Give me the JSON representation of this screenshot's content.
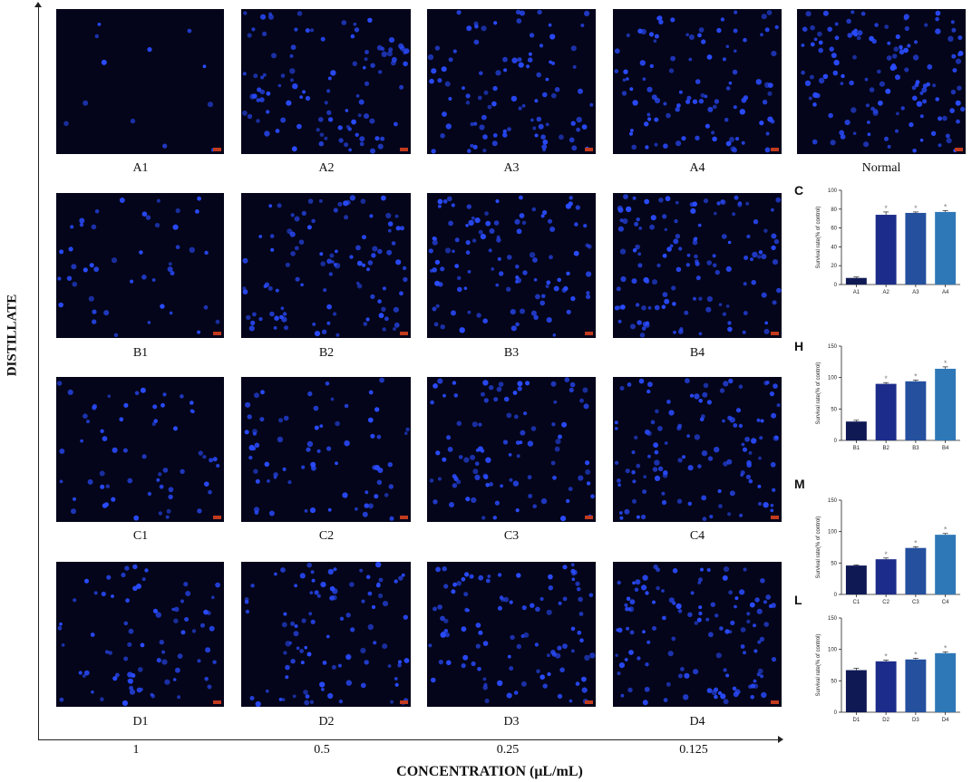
{
  "axes": {
    "y_title": "DISTILLATE",
    "x_title": "CONCENTRATION (μL/mL)",
    "concentrations": [
      "1",
      "0.5",
      "0.25",
      "0.125"
    ]
  },
  "images": [
    {
      "label": "A1",
      "density": 0.06
    },
    {
      "label": "A2",
      "density": 0.75
    },
    {
      "label": "A3",
      "density": 0.72
    },
    {
      "label": "A4",
      "density": 0.75
    },
    {
      "label": "Normal",
      "density": 1.0
    },
    {
      "label": "B1",
      "density": 0.32
    },
    {
      "label": "B2",
      "density": 0.75
    },
    {
      "label": "B3",
      "density": 0.8
    },
    {
      "label": "B4",
      "density": 0.95
    },
    {
      "label": "C1",
      "density": 0.42
    },
    {
      "label": "C2",
      "density": 0.5
    },
    {
      "label": "C3",
      "density": 0.7
    },
    {
      "label": "C4",
      "density": 0.85
    },
    {
      "label": "D1",
      "density": 0.55
    },
    {
      "label": "D2",
      "density": 0.7
    },
    {
      "label": "D3",
      "density": 0.75
    },
    {
      "label": "D4",
      "density": 0.88
    }
  ],
  "colors": {
    "bar_1": "#0f1a55",
    "bar_2": "#1c2c8a",
    "bar_3": "#24509e",
    "bar_4": "#2e78b8",
    "star": "#888888",
    "cell": "#2a4cff"
  },
  "chart_data": [
    {
      "type": "bar",
      "panel": "C",
      "title": "",
      "ylabel": "Survival rate(% of control)",
      "categories": [
        "A1",
        "A2",
        "A3",
        "A4"
      ],
      "values": [
        7,
        74,
        76,
        77
      ],
      "errors": [
        1,
        3,
        1,
        1.5
      ],
      "significant": [
        false,
        true,
        true,
        true
      ],
      "ylim": [
        0,
        100
      ],
      "yticks": [
        0,
        20,
        40,
        60,
        80,
        100
      ]
    },
    {
      "type": "bar",
      "panel": "H",
      "title": "",
      "ylabel": "Survival rate(% of control)",
      "categories": [
        "B1",
        "B2",
        "B3",
        "B4"
      ],
      "values": [
        30,
        90,
        94,
        114
      ],
      "errors": [
        2,
        2,
        2,
        3
      ],
      "significant": [
        false,
        true,
        true,
        true
      ],
      "ylim": [
        0,
        150
      ],
      "yticks": [
        0,
        50,
        100,
        150
      ]
    },
    {
      "type": "bar",
      "panel": "M",
      "title": "",
      "ylabel": "Survival rate(% of control)",
      "categories": [
        "C1",
        "C2",
        "C3",
        "C4"
      ],
      "values": [
        46,
        56,
        74,
        95
      ],
      "errors": [
        1,
        2,
        2,
        2
      ],
      "significant": [
        false,
        true,
        true,
        true
      ],
      "ylim": [
        0,
        150
      ],
      "yticks": [
        0,
        50,
        100,
        150
      ]
    },
    {
      "type": "bar",
      "panel": "L",
      "title": "",
      "ylabel": "Survival rate(% of control)",
      "categories": [
        "D1",
        "D2",
        "D3",
        "D4"
      ],
      "values": [
        67,
        81,
        84,
        94
      ],
      "errors": [
        3,
        2,
        2,
        2
      ],
      "significant": [
        false,
        true,
        true,
        true
      ],
      "ylim": [
        0,
        150
      ],
      "yticks": [
        0,
        50,
        100,
        150
      ]
    }
  ]
}
